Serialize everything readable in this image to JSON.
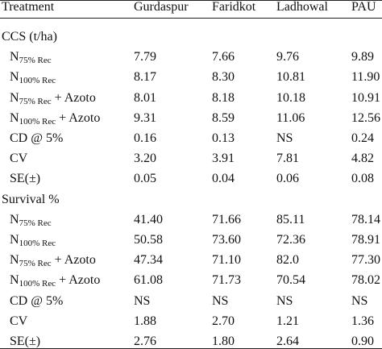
{
  "table": {
    "columns": [
      "Treatment",
      "Gurdaspur",
      "Faridkot",
      "Ladhowal",
      "PAU"
    ],
    "sections": [
      {
        "title": "CCS (t/ha)",
        "rows": [
          {
            "label": {
              "base": "N",
              "sub": "75% Rec"
            },
            "values": [
              "7.79",
              "7.66",
              "9.76",
              "9.89"
            ]
          },
          {
            "label": {
              "base": "N",
              "sub": "100% Rec"
            },
            "values": [
              "8.17",
              "8.30",
              "10.81",
              "11.90"
            ]
          },
          {
            "label": {
              "base": "N",
              "sub": "75% Rec",
              "suffix": "+ Azoto"
            },
            "values": [
              "8.01",
              "8.18",
              "10.18",
              "10.91"
            ]
          },
          {
            "label": {
              "base": "N",
              "sub": "100% Rec",
              "suffix": "+ Azoto"
            },
            "values": [
              "9.31",
              "8.59",
              "11.06",
              "12.56"
            ]
          },
          {
            "label": {
              "text": "CD @ 5%"
            },
            "values": [
              "0.16",
              "0.13",
              "NS",
              "0.24"
            ]
          },
          {
            "label": {
              "text": "CV"
            },
            "values": [
              "3.20",
              "3.91",
              "7.81",
              "4.82"
            ]
          },
          {
            "label": {
              "text": "SE(±)"
            },
            "values": [
              "0.05",
              "0.04",
              "0.06",
              "0.08"
            ]
          }
        ]
      },
      {
        "title": "Survival %",
        "rows": [
          {
            "label": {
              "base": "N",
              "sub": "75% Rec"
            },
            "values": [
              "41.40",
              "71.66",
              "85.11",
              "78.14"
            ]
          },
          {
            "label": {
              "base": "N",
              "sub": "100% Rec"
            },
            "values": [
              "50.58",
              "73.60",
              "72.36",
              "78.91"
            ]
          },
          {
            "label": {
              "base": "N",
              "sub": "75% Rec",
              "suffix": "+ Azoto"
            },
            "values": [
              "47.34",
              "71.10",
              "82.0",
              "77.30"
            ]
          },
          {
            "label": {
              "base": "N",
              "sub": "100% Rec",
              "suffix": "+ Azoto"
            },
            "values": [
              "61.08",
              "71.73",
              "70.54",
              "78.02"
            ]
          },
          {
            "label": {
              "text": "CD @ 5%"
            },
            "values": [
              "NS",
              "NS",
              "NS",
              "NS"
            ]
          },
          {
            "label": {
              "text": "CV"
            },
            "values": [
              "1.88",
              "2.70",
              "1.21",
              "1.36"
            ]
          },
          {
            "label": {
              "text": "SE(±)"
            },
            "values": [
              "2.76",
              "1.80",
              "2.64",
              "0.90"
            ]
          }
        ]
      }
    ]
  }
}
